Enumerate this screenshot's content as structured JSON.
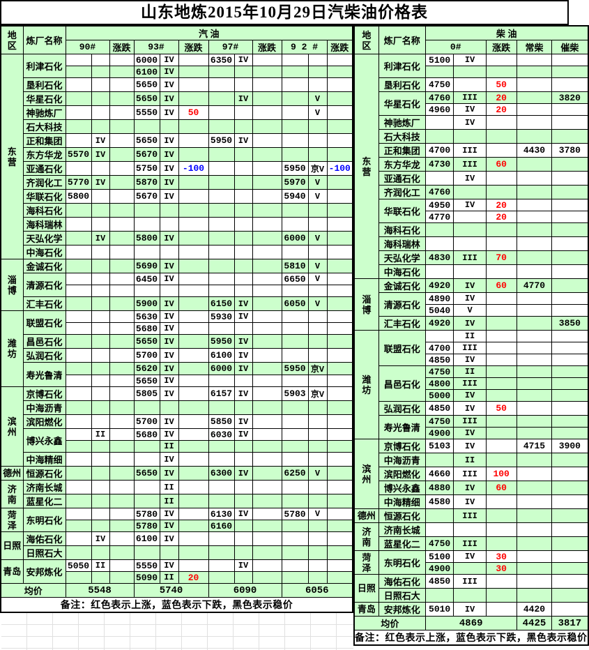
{
  "title": "山东地炼2015年10月29日汽柴油价格表",
  "note": "备注：红色表示上涨，蓝色表示下跌，黑色表示稳价",
  "labels": {
    "region": "地区",
    "refinery": "炼厂名称",
    "change": "涨跌",
    "avg": "均价"
  },
  "colors": {
    "band_green": "#ccffcc",
    "up_red": "#ff0000",
    "down_blue": "#0000ff",
    "border": "#000000"
  },
  "gasoline": {
    "group_label": "汽   油",
    "products": [
      "90#",
      "93#",
      "97#",
      "9 2 #"
    ],
    "regions": [
      {
        "label": "东营",
        "rows": 15,
        "stack": true
      },
      {
        "label": "淄博",
        "rows": 4,
        "stack": true
      },
      {
        "label": "潍坊",
        "rows": 6,
        "stack": true
      },
      {
        "label": "滨州",
        "rows": 6,
        "stack": true
      },
      {
        "label": "德州",
        "rows": 1,
        "stack": false
      },
      {
        "label": "济南",
        "rows": 2,
        "stack": true
      },
      {
        "label": "菏泽",
        "rows": 2,
        "stack": true
      },
      {
        "label": "日照",
        "rows": 2,
        "stack": false
      },
      {
        "label": "青岛",
        "rows": 2,
        "stack": false
      }
    ],
    "refineries": [
      {
        "label": "利津石化",
        "rows": 2
      },
      {
        "label": "垦利石化",
        "rows": 1
      },
      {
        "label": "华星石化",
        "rows": 1
      },
      {
        "label": "神驰炼厂",
        "rows": 1
      },
      {
        "label": "石大科技",
        "rows": 1
      },
      {
        "label": "正和集团",
        "rows": 1
      },
      {
        "label": "东方华龙",
        "rows": 1
      },
      {
        "label": "亚通石化",
        "rows": 1
      },
      {
        "label": "齐润化工",
        "rows": 1
      },
      {
        "label": "华联石化",
        "rows": 1
      },
      {
        "label": "海科石化",
        "rows": 1
      },
      {
        "label": "海科瑞林",
        "rows": 1
      },
      {
        "label": "天弘化学",
        "rows": 1
      },
      {
        "label": "中海石化",
        "rows": 1
      },
      {
        "label": "金诚石化",
        "rows": 1
      },
      {
        "label": "清源石化",
        "rows": 2
      },
      {
        "label": "汇丰石化",
        "rows": 1
      },
      {
        "label": "联盟石化",
        "rows": 2
      },
      {
        "label": "昌邑石化",
        "rows": 1
      },
      {
        "label": "弘润石化",
        "rows": 1
      },
      {
        "label": "寿光鲁清",
        "rows": 2
      },
      {
        "label": "京博石化",
        "rows": 1
      },
      {
        "label": "中海沥青",
        "rows": 1
      },
      {
        "label": "滨阳燃化",
        "rows": 1
      },
      {
        "label": "博兴永鑫",
        "rows": 2
      },
      {
        "label": "中海精细",
        "rows": 1
      },
      {
        "label": "恒源石化",
        "rows": 1
      },
      {
        "label": "济南长城",
        "rows": 1
      },
      {
        "label": "蓝星化二",
        "rows": 1
      },
      {
        "label": "东明石化",
        "rows": 2
      },
      {
        "label": "海佑石化",
        "rows": 1
      },
      {
        "label": "日照石大",
        "rows": 1
      },
      {
        "label": "安邦炼化",
        "rows": 2
      }
    ],
    "shades": [
      "w",
      "g",
      "w",
      "g",
      "w",
      "g",
      "w",
      "g",
      "w",
      "g",
      "w",
      "g",
      "w",
      "g",
      "w",
      "g",
      "w",
      "w",
      "g",
      "w",
      "w",
      "g",
      "w",
      "g",
      "w",
      "w",
      "g",
      "w",
      "w",
      "g",
      "w",
      "g",
      "w",
      "g",
      "w",
      "g",
      "w",
      "g",
      "w",
      "g"
    ],
    "rows": [
      [
        "",
        "",
        "",
        "6000",
        "IV",
        "",
        "6350",
        "IV",
        "",
        "",
        "",
        ""
      ],
      [
        "",
        "",
        "",
        "6100",
        "IV",
        "",
        "",
        "",
        "",
        "",
        "",
        ""
      ],
      [
        "",
        "",
        "",
        "5650",
        "IV",
        "",
        "",
        "",
        "",
        "",
        "",
        ""
      ],
      [
        "",
        "",
        "",
        "5650",
        "IV",
        "",
        "",
        "IV",
        "",
        "",
        "V",
        ""
      ],
      [
        "",
        "",
        "",
        "5550",
        "IV",
        "50",
        "",
        "",
        "",
        "",
        "V",
        ""
      ],
      [
        "",
        "",
        "",
        "",
        "",
        "",
        "",
        "",
        "",
        "",
        "",
        ""
      ],
      [
        "",
        "IV",
        "",
        "5650",
        "IV",
        "",
        "5950",
        "IV",
        "",
        "",
        "",
        ""
      ],
      [
        "5570",
        "IV",
        "",
        "5670",
        "IV",
        "",
        "",
        "",
        "",
        "",
        "",
        ""
      ],
      [
        "",
        "",
        "",
        "5750",
        "IV",
        "-100",
        "",
        "",
        "",
        "5950",
        "京V",
        "-100"
      ],
      [
        "5770",
        "IV",
        "",
        "5870",
        "IV",
        "",
        "",
        "",
        "",
        "5970",
        "V",
        ""
      ],
      [
        "5800",
        "",
        "",
        "5670",
        "IV",
        "",
        "",
        "",
        "",
        "5940",
        "V",
        ""
      ],
      [
        "",
        "",
        "",
        "",
        "",
        "",
        "",
        "",
        "",
        "",
        "",
        ""
      ],
      [
        "",
        "",
        "",
        "",
        "",
        "",
        "",
        "",
        "",
        "",
        "",
        ""
      ],
      [
        "",
        "IV",
        "",
        "5800",
        "IV",
        "",
        "",
        "",
        "",
        "6000",
        "V",
        ""
      ],
      [
        "",
        "",
        "",
        "",
        "",
        "",
        "",
        "",
        "",
        "",
        "",
        ""
      ],
      [
        "",
        "",
        "",
        "5690",
        "IV",
        "",
        "",
        "",
        "",
        "5810",
        "V",
        ""
      ],
      [
        "",
        "",
        "",
        "6450",
        "IV",
        "",
        "",
        "",
        "",
        "6650",
        "V",
        ""
      ],
      [
        "",
        "",
        "",
        "",
        "",
        "",
        "",
        "",
        "",
        "",
        "",
        ""
      ],
      [
        "",
        "",
        "",
        "5900",
        "IV",
        "",
        "6150",
        "IV",
        "",
        "6050",
        "V",
        ""
      ],
      [
        "",
        "",
        "",
        "5630",
        "IV",
        "",
        "5930",
        "IV",
        "",
        "",
        "",
        ""
      ],
      [
        "",
        "",
        "",
        "5680",
        "IV",
        "",
        "",
        "",
        "",
        "",
        "",
        ""
      ],
      [
        "",
        "",
        "",
        "5650",
        "IV",
        "",
        "5950",
        "IV",
        "",
        "",
        "",
        ""
      ],
      [
        "",
        "",
        "",
        "5700",
        "IV",
        "",
        "6100",
        "IV",
        "",
        "",
        "",
        ""
      ],
      [
        "",
        "",
        "",
        "5620",
        "IV",
        "",
        "6000",
        "IV",
        "",
        "5950",
        "京V",
        ""
      ],
      [
        "",
        "",
        "",
        "5650",
        "IV",
        "",
        "",
        "",
        "",
        "",
        "",
        ""
      ],
      [
        "",
        "",
        "",
        "5805",
        "IV",
        "",
        "6157",
        "IV",
        "",
        "5903",
        "京V",
        ""
      ],
      [
        "",
        "",
        "",
        "",
        "",
        "",
        "",
        "",
        "",
        "",
        "",
        ""
      ],
      [
        "",
        "",
        "",
        "5700",
        "IV",
        "",
        "5850",
        "IV",
        "",
        "",
        "",
        ""
      ],
      [
        "",
        "II",
        "",
        "5680",
        "IV",
        "",
        "6030",
        "IV",
        "",
        "",
        "",
        ""
      ],
      [
        "",
        "",
        "",
        "",
        "II",
        "",
        "",
        "",
        "",
        "",
        "",
        ""
      ],
      [
        "",
        "",
        "",
        "",
        "IV",
        "",
        "",
        "",
        "",
        "",
        "",
        ""
      ],
      [
        "",
        "",
        "",
        "5650",
        "IV",
        "",
        "6300",
        "IV",
        "",
        "6250",
        "V",
        ""
      ],
      [
        "",
        "",
        "",
        "",
        "II",
        "",
        "",
        "",
        "",
        "",
        "",
        ""
      ],
      [
        "",
        "",
        "",
        "",
        "II",
        "",
        "",
        "",
        "",
        "",
        "",
        ""
      ],
      [
        "",
        "",
        "",
        "5780",
        "IV",
        "",
        "6130",
        "IV",
        "",
        "5780",
        "V",
        ""
      ],
      [
        "",
        "",
        "",
        "5780",
        "IV",
        "",
        "6160",
        "",
        "",
        "",
        "",
        ""
      ],
      [
        "",
        "IV",
        "",
        "6100",
        "IV",
        "",
        "",
        "",
        "",
        "",
        "",
        ""
      ],
      [
        "",
        "",
        "",
        "",
        "",
        "",
        "",
        "",
        "",
        "",
        "",
        ""
      ],
      [
        "5050",
        "II",
        "",
        "5550",
        "IV",
        "",
        "",
        "IV",
        "",
        "",
        "",
        ""
      ],
      [
        "",
        "",
        "",
        "5090",
        "II",
        "20",
        "",
        "",
        "",
        "",
        "",
        ""
      ]
    ],
    "avg": [
      "5548",
      "5740",
      "6090",
      "6056"
    ]
  },
  "diesel": {
    "group_label": "柴   油",
    "products": [
      "0#"
    ],
    "extra_cols": [
      "常柴",
      "催柴"
    ],
    "regions": [
      {
        "label": "东营",
        "rows": 17,
        "stack": true
      },
      {
        "label": "淄博",
        "rows": 4,
        "stack": true
      },
      {
        "label": "潍坊",
        "rows": 9,
        "stack": true
      },
      {
        "label": "滨州",
        "rows": 5,
        "stack": true
      },
      {
        "label": "德州",
        "rows": 1,
        "stack": false
      },
      {
        "label": "济南",
        "rows": 2,
        "stack": true
      },
      {
        "label": "菏泽",
        "rows": 2,
        "stack": true
      },
      {
        "label": "日照",
        "rows": 2,
        "stack": false
      },
      {
        "label": "青岛",
        "rows": 1,
        "stack": false
      }
    ],
    "refineries": [
      {
        "label": "利津石化",
        "rows": 2
      },
      {
        "label": "垦利石化",
        "rows": 1
      },
      {
        "label": "华星石化",
        "rows": 2
      },
      {
        "label": "神驰炼厂",
        "rows": 1
      },
      {
        "label": "石大科技",
        "rows": 1
      },
      {
        "label": "正和集团",
        "rows": 1
      },
      {
        "label": "东方华龙",
        "rows": 1
      },
      {
        "label": "亚通石化",
        "rows": 1
      },
      {
        "label": "齐润化工",
        "rows": 1
      },
      {
        "label": "华联石化",
        "rows": 2
      },
      {
        "label": "海科石化",
        "rows": 1
      },
      {
        "label": "海科瑞林",
        "rows": 1
      },
      {
        "label": "天弘化学",
        "rows": 1
      },
      {
        "label": "中海石化",
        "rows": 1
      },
      {
        "label": "金诚石化",
        "rows": 1
      },
      {
        "label": "清源石化",
        "rows": 2
      },
      {
        "label": "汇丰石化",
        "rows": 1
      },
      {
        "label": "联盟石化",
        "rows": 3
      },
      {
        "label": "昌邑石化",
        "rows": 3
      },
      {
        "label": "弘润石化",
        "rows": 1
      },
      {
        "label": "寿光鲁清",
        "rows": 2
      },
      {
        "label": "京博石化",
        "rows": 1
      },
      {
        "label": "中海沥青",
        "rows": 1
      },
      {
        "label": "滨阳燃化",
        "rows": 1
      },
      {
        "label": "博兴永鑫",
        "rows": 1
      },
      {
        "label": "中海精细",
        "rows": 1
      },
      {
        "label": "恒源石化",
        "rows": 1
      },
      {
        "label": "济南长城",
        "rows": 1
      },
      {
        "label": "蓝星化二",
        "rows": 1
      },
      {
        "label": "东明石化",
        "rows": 2
      },
      {
        "label": "海佑石化",
        "rows": 1
      },
      {
        "label": "日照石大",
        "rows": 1
      },
      {
        "label": "安邦炼化",
        "rows": 1
      }
    ],
    "shades": [
      "w",
      "g",
      "w",
      "g",
      "w",
      "w",
      "g",
      "w",
      "g",
      "w",
      "g",
      "w",
      "w",
      "g",
      "w",
      "g",
      "w",
      "g",
      "w",
      "w",
      "g",
      "w",
      "w",
      "w",
      "g",
      "g",
      "g",
      "w",
      "g",
      "g",
      "w",
      "g",
      "w",
      "g",
      "w",
      "g",
      "w",
      "g",
      "w",
      "g",
      "w",
      "g",
      "w"
    ],
    "rows": [
      [
        "5100",
        "IV",
        "",
        "",
        ""
      ],
      [
        "",
        "",
        "",
        "",
        ""
      ],
      [
        "4750",
        "",
        "50",
        "",
        ""
      ],
      [
        "4760",
        "III",
        "20",
        "",
        "3820"
      ],
      [
        "4960",
        "IV",
        "20",
        "",
        ""
      ],
      [
        "",
        "IV",
        "",
        "",
        ""
      ],
      [
        "",
        "",
        "",
        "",
        ""
      ],
      [
        "4700",
        "III",
        "",
        "4430",
        "3780"
      ],
      [
        "4730",
        "III",
        "60",
        "",
        ""
      ],
      [
        "",
        "IV",
        "",
        "",
        ""
      ],
      [
        "4760",
        "",
        "",
        "",
        ""
      ],
      [
        "4950",
        "IV",
        "20",
        "",
        ""
      ],
      [
        "4770",
        "",
        "20",
        "",
        ""
      ],
      [
        "",
        "",
        "",
        "",
        ""
      ],
      [
        "",
        "",
        "",
        "",
        ""
      ],
      [
        "4830",
        "III",
        "70",
        "",
        ""
      ],
      [
        "",
        "",
        "",
        "",
        ""
      ],
      [
        "4920",
        "IV",
        "60",
        "4770",
        ""
      ],
      [
        "4890",
        "IV",
        "",
        "",
        ""
      ],
      [
        "5040",
        "V",
        "",
        "",
        ""
      ],
      [
        "4920",
        "IV",
        "",
        "",
        "3850"
      ],
      [
        "",
        "II",
        "",
        "",
        ""
      ],
      [
        "4700",
        "III",
        "",
        "",
        ""
      ],
      [
        "4850",
        "IV",
        "",
        "",
        ""
      ],
      [
        "4750",
        "II",
        "",
        "",
        ""
      ],
      [
        "4800",
        "III",
        "",
        "",
        ""
      ],
      [
        "5000",
        "IV",
        "",
        "",
        ""
      ],
      [
        "4850",
        "IV",
        "50",
        "",
        ""
      ],
      [
        "4750",
        "III",
        "",
        "",
        ""
      ],
      [
        "4900",
        "IV",
        "",
        "",
        ""
      ],
      [
        "5103",
        "IV",
        "",
        "4715",
        "3900"
      ],
      [
        "",
        "II",
        "",
        "",
        ""
      ],
      [
        "4660",
        "III",
        "100",
        "",
        ""
      ],
      [
        "4880",
        "IV",
        "60",
        "",
        ""
      ],
      [
        "4580",
        "IV",
        "",
        "",
        ""
      ],
      [
        "",
        "III",
        "",
        "",
        ""
      ],
      [
        "",
        "",
        "",
        "",
        ""
      ],
      [
        "4750",
        "III",
        "",
        "",
        ""
      ],
      [
        "5100",
        "IV",
        "30",
        "",
        ""
      ],
      [
        "4900",
        "",
        "30",
        "",
        ""
      ],
      [
        "4850",
        "III",
        "",
        "",
        ""
      ],
      [
        "",
        "",
        "",
        "",
        ""
      ],
      [
        "5010",
        "IV",
        "",
        "4420",
        ""
      ]
    ],
    "avg": [
      "4869",
      "4425",
      "3817"
    ]
  }
}
